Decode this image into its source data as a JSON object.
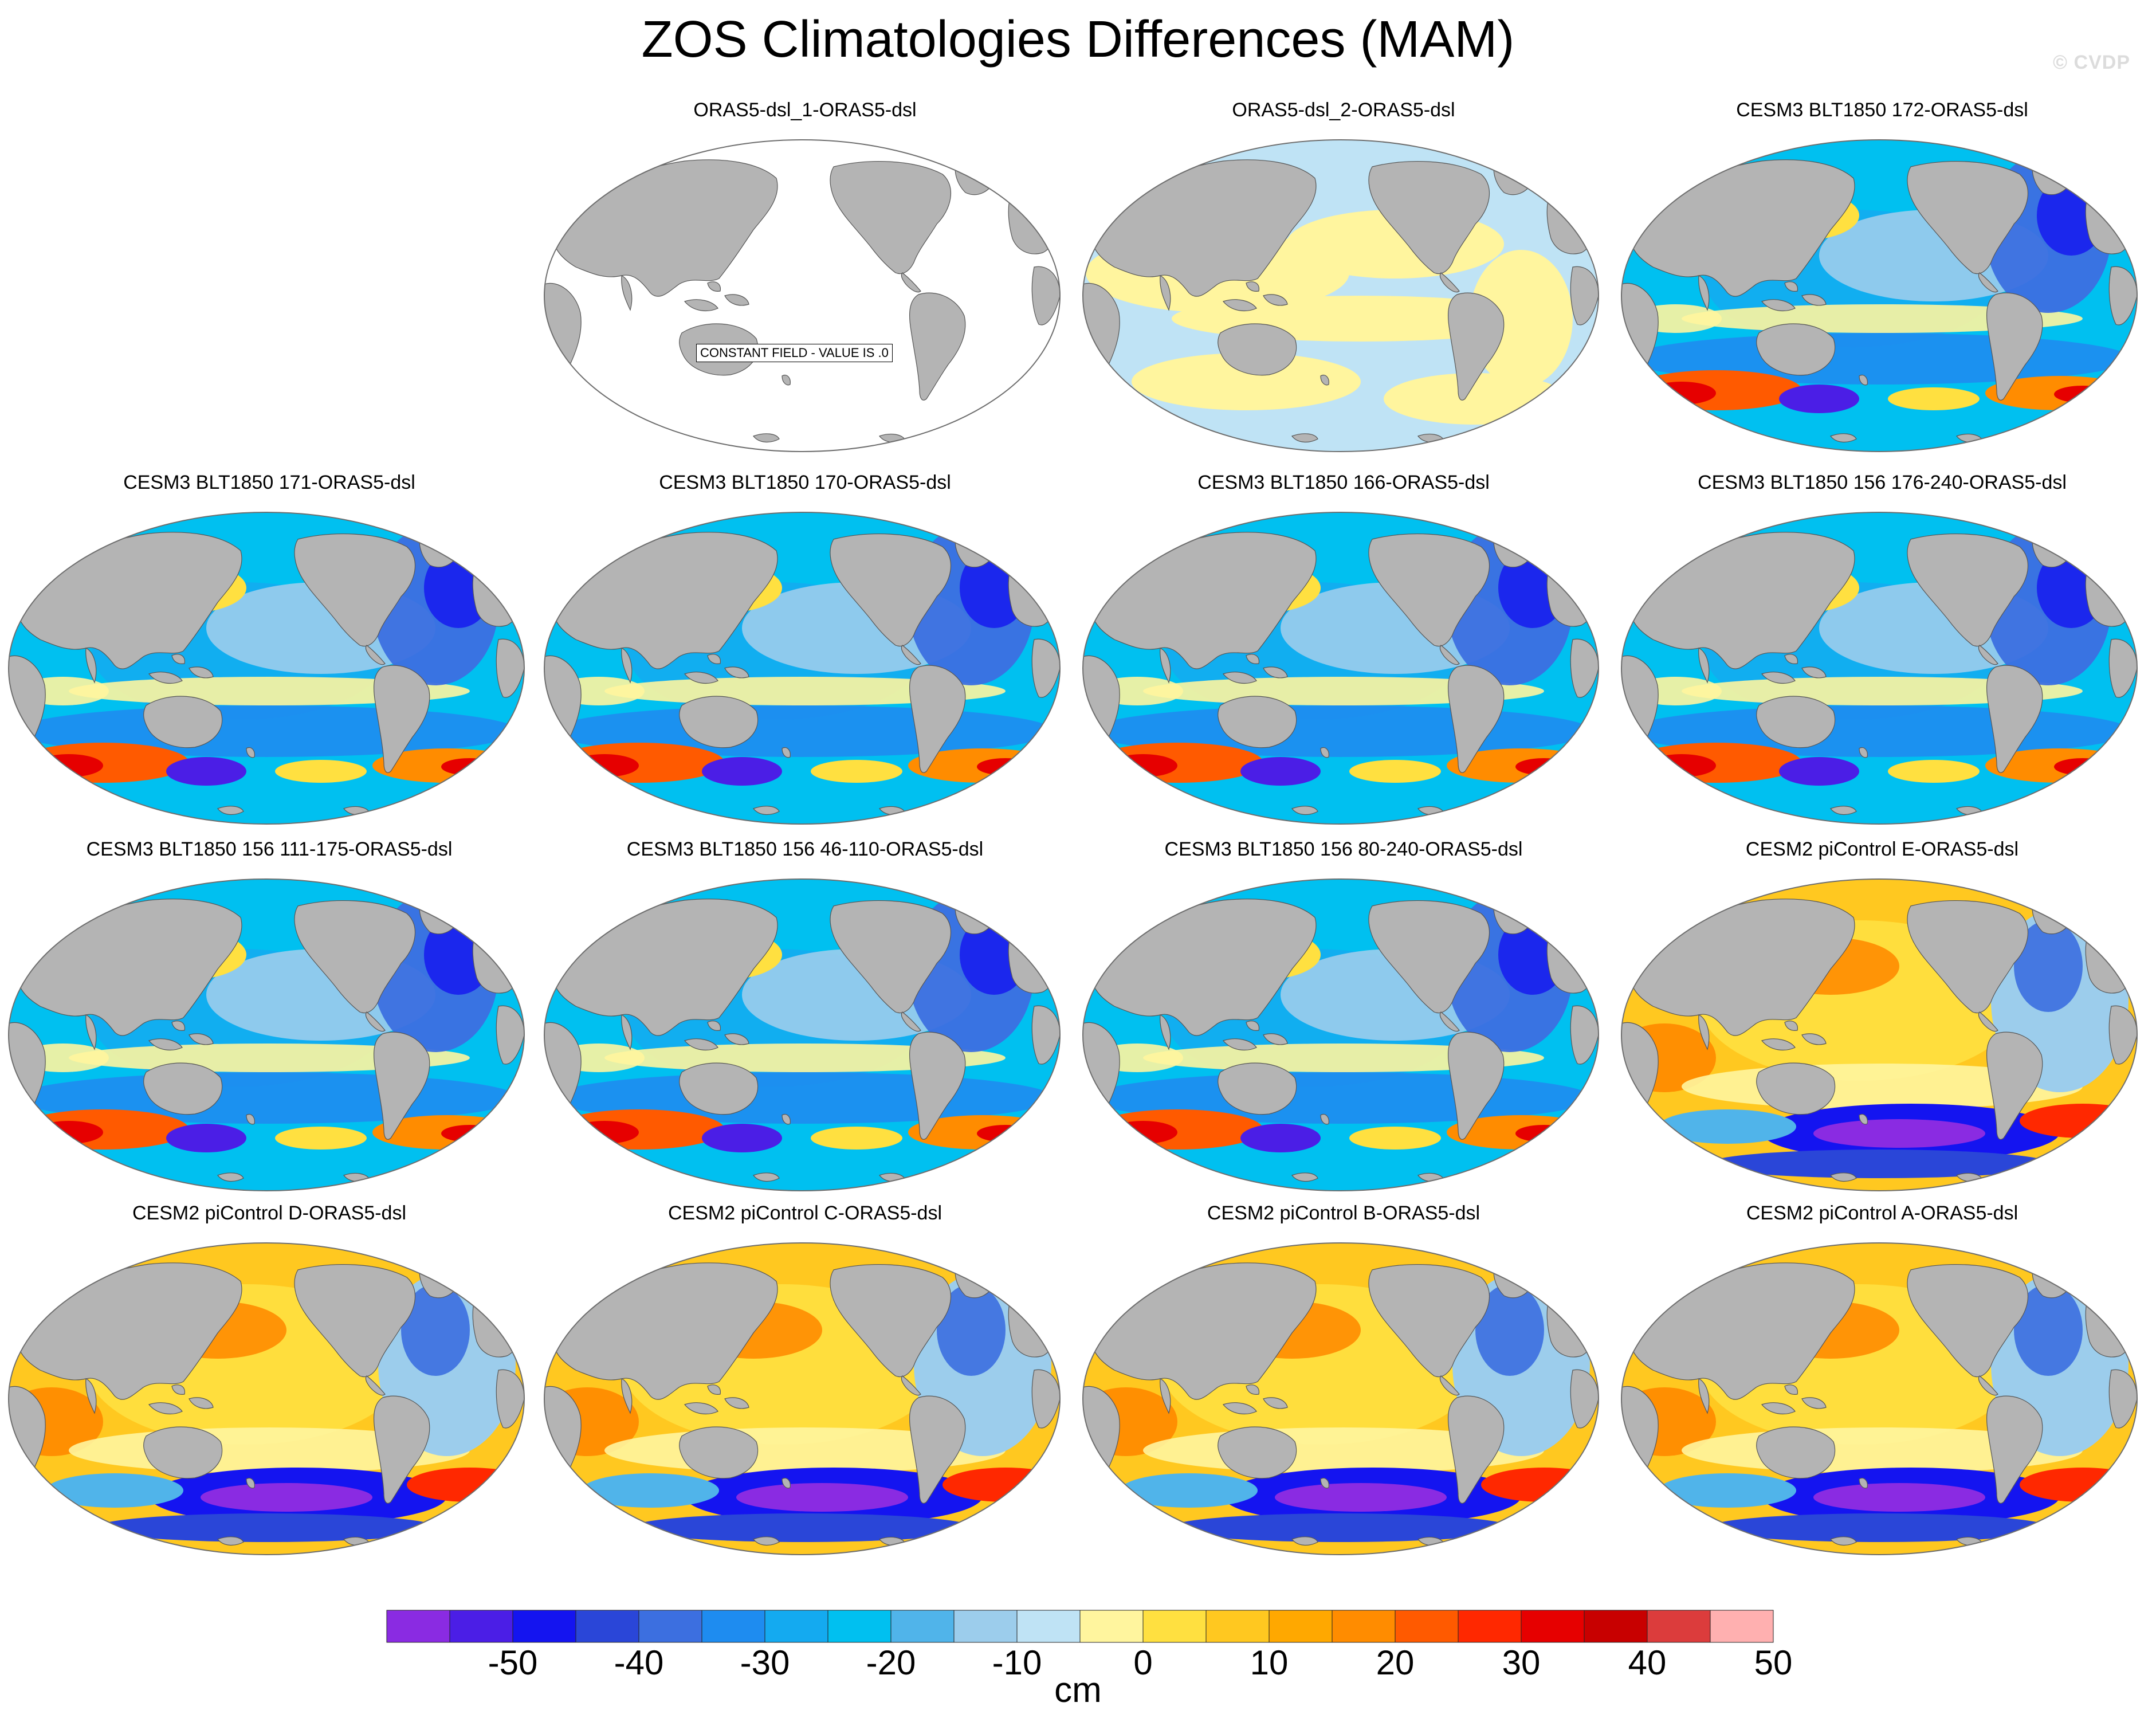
{
  "figure": {
    "title": "ZOS Climatologies Differences (MAM)",
    "watermark": "© CVDP",
    "colorbar_unit": "cm",
    "constant_field_label": "CONSTANT FIELD - VALUE IS .0"
  },
  "panels": [
    {
      "title": "",
      "empty": true
    },
    {
      "title": "ORAS5-dsl_1-ORAS5-dsl",
      "pattern": "constant"
    },
    {
      "title": "ORAS5-dsl_2-ORAS5-dsl",
      "pattern": "near-zero"
    },
    {
      "title": "CESM3 BLT1850 172-ORAS5-dsl",
      "pattern": "cesm3"
    },
    {
      "title": "CESM3 BLT1850 171-ORAS5-dsl",
      "pattern": "cesm3"
    },
    {
      "title": "CESM3 BLT1850 170-ORAS5-dsl",
      "pattern": "cesm3"
    },
    {
      "title": "CESM3 BLT1850 166-ORAS5-dsl",
      "pattern": "cesm3"
    },
    {
      "title": "CESM3 BLT1850 156 176-240-ORAS5-dsl",
      "pattern": "cesm3"
    },
    {
      "title": "CESM3 BLT1850 156 111-175-ORAS5-dsl",
      "pattern": "cesm3"
    },
    {
      "title": "CESM3 BLT1850 156 46-110-ORAS5-dsl",
      "pattern": "cesm3"
    },
    {
      "title": "CESM3 BLT1850 156 80-240-ORAS5-dsl",
      "pattern": "cesm3"
    },
    {
      "title": "CESM2 piControl E-ORAS5-dsl",
      "pattern": "cesm2"
    },
    {
      "title": "CESM2 piControl D-ORAS5-dsl",
      "pattern": "cesm2"
    },
    {
      "title": "CESM2 piControl C-ORAS5-dsl",
      "pattern": "cesm2"
    },
    {
      "title": "CESM2 piControl B-ORAS5-dsl",
      "pattern": "cesm2"
    },
    {
      "title": "CESM2 piControl A-ORAS5-dsl",
      "pattern": "cesm2"
    }
  ],
  "colorbar": {
    "colors": [
      "#8a2be2",
      "#4b1ee6",
      "#1414f0",
      "#2a46d8",
      "#3c6fe0",
      "#1e8cf0",
      "#14aaf0",
      "#00c0f0",
      "#50b4ea",
      "#9ccdec",
      "#bfe3f5",
      "#fff59e",
      "#ffe040",
      "#ffc820",
      "#ffa800",
      "#ff8c00",
      "#ff5a00",
      "#ff2800",
      "#e60000",
      "#c80000",
      "#dc3c3c",
      "#ffb0b0"
    ],
    "tick_labels": [
      "-50",
      "-40",
      "-30",
      "-20",
      "-10",
      "0",
      "10",
      "20",
      "30",
      "40",
      "50"
    ]
  },
  "palette": {
    "land": "#b4b4b4",
    "ocean_blank": "#ffffff",
    "outline": "#6e6e6e"
  }
}
